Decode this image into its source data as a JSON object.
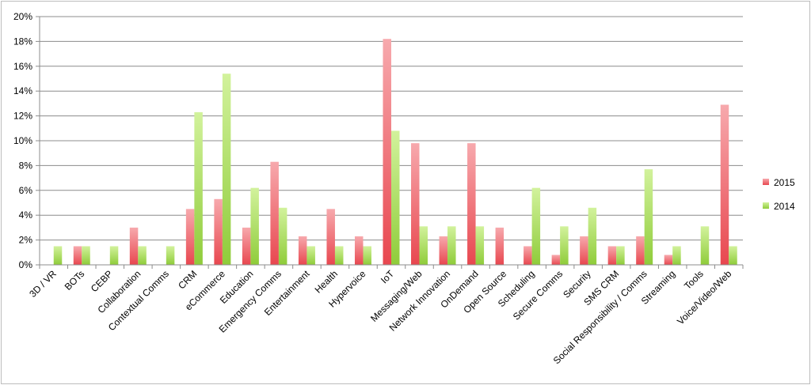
{
  "chart_data": {
    "type": "bar",
    "title": "",
    "xlabel": "",
    "ylabel": "",
    "ylim": [
      0,
      0.2
    ],
    "ytick_labels": [
      "0%",
      "2%",
      "4%",
      "6%",
      "8%",
      "10%",
      "12%",
      "14%",
      "16%",
      "18%",
      "20%"
    ],
    "grid": true,
    "legend_position": "right",
    "categories": [
      "3D / VR",
      "BOTs",
      "CEBP",
      "Collaboration",
      "Contextual Comms",
      "CRM",
      "eCommerce",
      "Education",
      "Emergency Comms",
      "Entertainment",
      "Health",
      "Hypervoice",
      "IoT",
      "Messaging/Web",
      "Network Innovation",
      "OnDemand",
      "Open Source",
      "Scheduling",
      "Secure Comms",
      "Security",
      "SMS CRM",
      "Social Responsibility / Comms",
      "Streaming",
      "Tools",
      "Voice/Video/Web"
    ],
    "series": [
      {
        "name": "2015",
        "color": "#e8474f",
        "values": [
          0,
          0.015,
          0,
          0.03,
          0,
          0.045,
          0.053,
          0.03,
          0.083,
          0.023,
          0.045,
          0.023,
          0.182,
          0.098,
          0.023,
          0.098,
          0.03,
          0.015,
          0.008,
          0.023,
          0.015,
          0.023,
          0.008,
          0,
          0.129
        ]
      },
      {
        "name": "2014",
        "color": "#8fcc3a",
        "values": [
          0.015,
          0.015,
          0.015,
          0.015,
          0.015,
          0.123,
          0.154,
          0.062,
          0.046,
          0.015,
          0.015,
          0.015,
          0.108,
          0.031,
          0.031,
          0.031,
          0,
          0.062,
          0.031,
          0.046,
          0.015,
          0.077,
          0.015,
          0.031,
          0.015
        ]
      }
    ]
  }
}
